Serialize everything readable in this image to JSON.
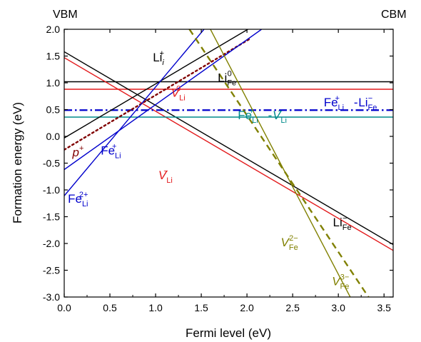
{
  "chart_data": {
    "type": "line",
    "xlabel": "Fermi level (eV)",
    "ylabel": "Formation energy (eV)",
    "xlim": [
      0.0,
      3.6
    ],
    "ylim": [
      -3.0,
      2.0
    ],
    "xticks": [
      "0.0",
      "0.5",
      "1.0",
      "1.5",
      "2.0",
      "2.5",
      "3.0",
      "3.5"
    ],
    "yticks": [
      "2.0",
      "1.5",
      "1.0",
      "0.5",
      "0.0",
      "-0.5",
      "-1.0",
      "-1.5",
      "-2.0",
      "-2.5",
      "-3.0"
    ],
    "corner_left": "VBM",
    "corner_right": "CBM",
    "grid": false,
    "series": [
      {
        "color": "#000000",
        "style": "solid",
        "x": [
          0.0,
          3.6
        ],
        "y": [
          1.02,
          1.02
        ]
      },
      {
        "color": "#e31a1c",
        "style": "solid",
        "x": [
          0.0,
          3.6
        ],
        "y": [
          0.88,
          0.88
        ]
      },
      {
        "color": "#000000",
        "style": "solid",
        "x": [
          0.0,
          3.6
        ],
        "y": [
          1.58,
          -2.02
        ]
      },
      {
        "color": "#e31a1c",
        "style": "solid",
        "x": [
          0.0,
          3.6
        ],
        "y": [
          1.47,
          -2.13
        ]
      },
      {
        "color": "#0000cc",
        "style": "dashdot",
        "x": [
          0.0,
          3.6
        ],
        "y": [
          0.49,
          0.49
        ]
      },
      {
        "color": "#008b8b",
        "style": "solid",
        "x": [
          0.0,
          3.6
        ],
        "y": [
          0.36,
          0.36
        ]
      },
      {
        "color": "#000000",
        "style": "solid",
        "x": [
          0.0,
          2.01
        ],
        "y": [
          -0.03,
          2.0
        ]
      },
      {
        "color": "#800000",
        "style": "dotted",
        "x": [
          0.0,
          2.04
        ],
        "y": [
          -0.25,
          1.83
        ]
      },
      {
        "color": "#0000cc",
        "style": "solid",
        "x": [
          0.0,
          2.16
        ],
        "y": [
          -0.62,
          2.0
        ]
      },
      {
        "color": "#0000cc",
        "style": "solid",
        "x": [
          0.0,
          1.53
        ],
        "y": [
          -1.11,
          2.0
        ]
      },
      {
        "color": "#808000",
        "style": "dashed",
        "x": [
          1.37,
          3.33
        ],
        "y": [
          2.0,
          -3.0
        ]
      },
      {
        "color": "#808000",
        "style": "solid",
        "x": [
          1.6,
          3.13
        ],
        "y": [
          2.0,
          -3.0
        ]
      }
    ],
    "labels": [
      {
        "base": "Li",
        "sub": "Fe",
        "sup": "0",
        "x": 1.68,
        "y": 1.02,
        "color": "#000000",
        "italic": false
      },
      {
        "base": "V",
        "sub": "Li",
        "sup": "0",
        "x": 1.17,
        "y": 0.74,
        "color": "#e31a1c",
        "italic": true
      },
      {
        "base": "Li",
        "sub": "i",
        "sup": "+",
        "x": 0.97,
        "y": 1.4,
        "color": "#000000",
        "italic": false,
        "sub_italic": true
      },
      {
        "base": "p",
        "sup": "+",
        "x": 0.09,
        "y": -0.37,
        "color": "#800000",
        "italic": true
      },
      {
        "base": "Fe",
        "sub": "Li",
        "sup": "+",
        "x": 0.4,
        "y": -0.34,
        "color": "#0000cc",
        "italic": false
      },
      {
        "base": "Fe",
        "sub": "Li",
        "sup": "2+",
        "x": 0.04,
        "y": -1.24,
        "color": "#0000cc",
        "italic": false
      },
      {
        "base": "V",
        "sub": "Li",
        "sup": "−",
        "x": 1.03,
        "y": -0.8,
        "color": "#e31a1c",
        "italic": true
      },
      {
        "base": "Fe",
        "sub": "Li",
        "sup": "+",
        "x": 1.9,
        "y": 0.32,
        "color": "#008b8b",
        "italic": false
      },
      {
        "text": "-",
        "x": 2.23,
        "y": 0.32,
        "color": "#008b8b"
      },
      {
        "base": "V",
        "sub": "Li",
        "sup": "−",
        "x": 2.28,
        "y": 0.32,
        "color": "#008b8b",
        "italic": true
      },
      {
        "base": "Fe",
        "sub": "Li",
        "sup": "+",
        "x": 2.84,
        "y": 0.56,
        "color": "#0000cc",
        "italic": false
      },
      {
        "text": "-",
        "x": 3.17,
        "y": 0.56,
        "color": "#0000cc"
      },
      {
        "base": "Li",
        "sub": "Fe",
        "sup": "−",
        "x": 3.22,
        "y": 0.56,
        "color": "#0000cc",
        "italic": false
      },
      {
        "base": "Li",
        "sub": "Fe",
        "sup": "−",
        "x": 2.94,
        "y": -1.68,
        "color": "#000000",
        "italic": false
      },
      {
        "base": "V",
        "sub": "Fe",
        "sup": "2−",
        "x": 2.37,
        "y": -2.05,
        "color": "#808000",
        "italic": true
      },
      {
        "base": "V",
        "sub": "Fe",
        "sup": "3−",
        "x": 2.93,
        "y": -2.78,
        "color": "#808000",
        "italic": true
      }
    ]
  }
}
